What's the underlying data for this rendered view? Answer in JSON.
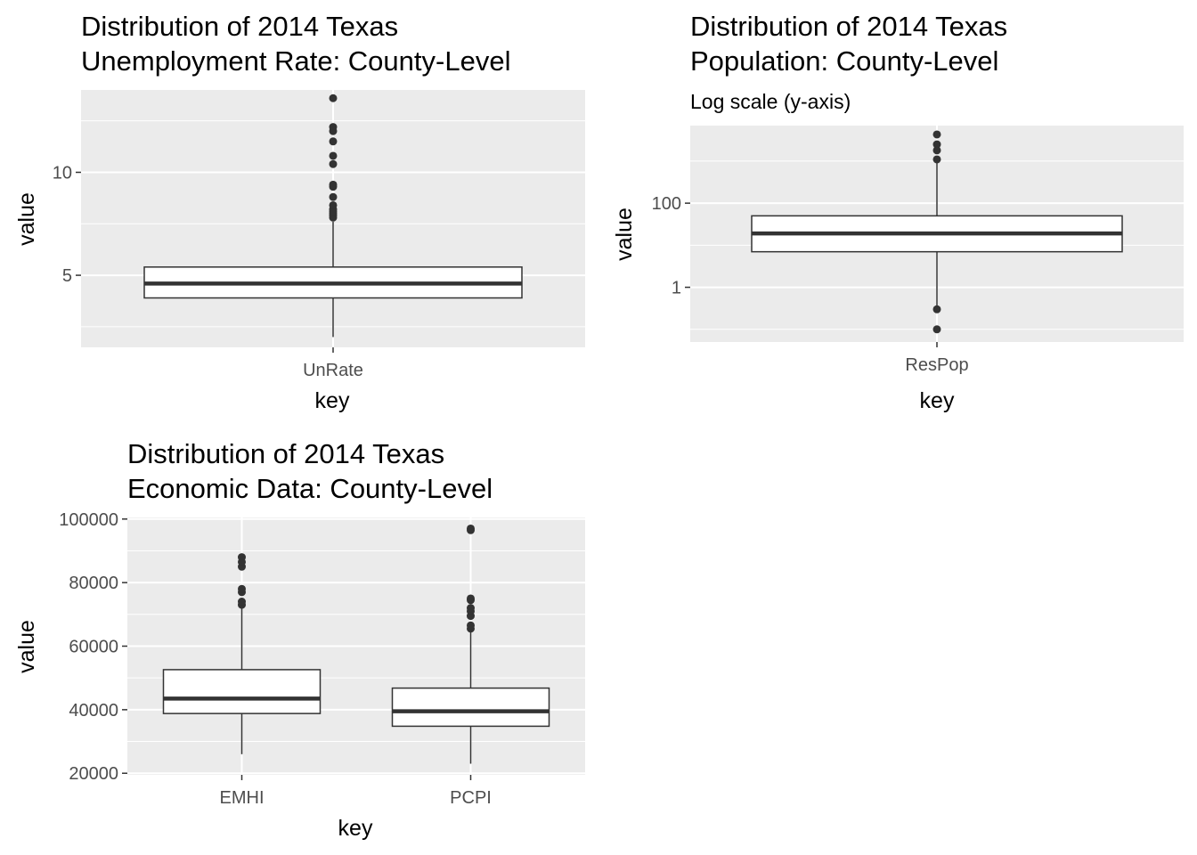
{
  "charts": [
    {
      "id": "unrate",
      "title_lines": [
        "Distribution of 2014 Texas",
        "Unemployment Rate: County-Level"
      ],
      "subtitle": "",
      "xlabel": "key",
      "ylabel": "value",
      "y_ticks": [
        {
          "value": 5,
          "label": "5"
        },
        {
          "value": 10,
          "label": "10"
        }
      ]
    },
    {
      "id": "respop",
      "title_lines": [
        "Distribution of 2014 Texas",
        "Population: County-Level"
      ],
      "subtitle": "Log scale (y-axis)",
      "xlabel": "key",
      "ylabel": "value",
      "y_ticks": [
        {
          "value": 1,
          "label": "1"
        },
        {
          "value": 100,
          "label": "100"
        }
      ]
    },
    {
      "id": "econ",
      "title_lines": [
        "Distribution of 2014 Texas",
        "Economic Data: County-Level"
      ],
      "subtitle": "",
      "xlabel": "key",
      "ylabel": "value",
      "y_ticks": [
        {
          "value": 20000,
          "label": "20000"
        },
        {
          "value": 40000,
          "label": "40000"
        },
        {
          "value": 60000,
          "label": "60000"
        },
        {
          "value": 80000,
          "label": "80000"
        },
        {
          "value": 100000,
          "label": "100000"
        }
      ]
    }
  ],
  "chart_data": [
    {
      "type": "box",
      "title": "Distribution of 2014 Texas Unemployment Rate: County-Level",
      "xlabel": "key",
      "ylabel": "value",
      "y_scale": "linear",
      "ylim": [
        1.5,
        14.0
      ],
      "grid": true,
      "categories": [
        "UnRate"
      ],
      "boxes": [
        {
          "category": "UnRate",
          "whisker_low": 2.0,
          "q1": 3.9,
          "median": 4.6,
          "q3": 5.4,
          "whisker_high": 7.6,
          "outliers": [
            7.8,
            7.9,
            8.0,
            8.1,
            8.2,
            8.4,
            8.8,
            9.3,
            9.4,
            10.4,
            10.8,
            11.5,
            12.0,
            12.2,
            13.6
          ]
        }
      ]
    },
    {
      "type": "box",
      "title": "Distribution of 2014 Texas Population: County-Level",
      "subtitle": "Log scale (y-axis)",
      "xlabel": "key",
      "ylabel": "value",
      "y_scale": "log10",
      "ylim": [
        0.05,
        7000
      ],
      "grid": true,
      "categories": [
        "ResPop"
      ],
      "boxes": [
        {
          "category": "ResPop",
          "whisker_low": 0.35,
          "q1": 7,
          "median": 19,
          "q3": 50,
          "whisker_high": 1000,
          "outliers": [
            0.1,
            0.3,
            1100,
            1800,
            2500,
            4300
          ]
        }
      ]
    },
    {
      "type": "box",
      "title": "Distribution of 2014 Texas Economic Data: County-Level",
      "xlabel": "key",
      "ylabel": "value",
      "y_scale": "linear",
      "ylim": [
        19500,
        100500
      ],
      "grid": true,
      "categories": [
        "EMHI",
        "PCPI"
      ],
      "boxes": [
        {
          "category": "EMHI",
          "whisker_low": 26000,
          "q1": 38800,
          "median": 43500,
          "q3": 52600,
          "whisker_high": 72500,
          "outliers": [
            73000,
            74000,
            77000,
            78000,
            85000,
            86500,
            88000
          ]
        },
        {
          "category": "PCPI",
          "whisker_low": 23000,
          "q1": 34800,
          "median": 39500,
          "q3": 46800,
          "whisker_high": 64500,
          "outliers": [
            65500,
            66500,
            69500,
            71000,
            72000,
            74500,
            75000,
            96500,
            97000
          ]
        }
      ]
    }
  ]
}
